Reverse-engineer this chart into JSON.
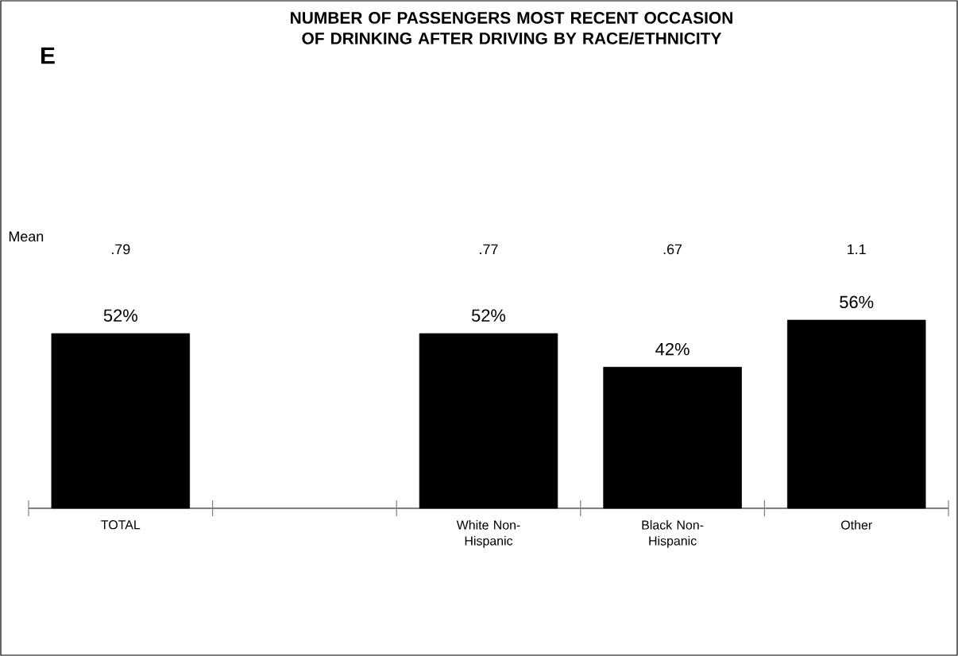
{
  "chart_data": {
    "type": "bar",
    "title": "NUMBER OF PASSENGERS MOST RECENT OCCASION OF DRINKING AFTER DRIVING BY RACE/ETHNICITY",
    "categories": [
      "TOTAL",
      null,
      "White Non-Hispanic",
      "Black Non-Hispanic",
      "Other"
    ],
    "values": [
      52,
      null,
      52,
      42,
      56
    ],
    "value_labels": [
      "52%",
      null,
      "52%",
      "42%",
      "56%"
    ],
    "color": "#000000",
    "annotations": [
      "E",
      "Mean",
      ".79",
      ".77",
      ".67",
      "1.1"
    ]
  }
}
